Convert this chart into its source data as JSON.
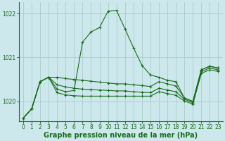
{
  "title": "Graphe pression niveau de la mer (hPa)",
  "background_color": "#cce8ec",
  "grid_color": "#aacccc",
  "line_color": "#1a6b1a",
  "ylim": [
    1019.55,
    1022.25
  ],
  "yticks": [
    1020,
    1021,
    1022
  ],
  "xlim": [
    -0.5,
    23.5
  ],
  "xticks": [
    0,
    1,
    2,
    3,
    4,
    5,
    6,
    7,
    8,
    9,
    10,
    11,
    12,
    13,
    14,
    15,
    16,
    17,
    18,
    19,
    20,
    21,
    22,
    23
  ],
  "fontsize_title": 7,
  "fontsize_ticks": 5.5,
  "main_y": [
    1019.62,
    1019.83,
    1020.45,
    1020.55,
    1020.28,
    1020.22,
    1020.25,
    1021.35,
    1021.58,
    1021.68,
    1022.05,
    1022.07,
    1021.65,
    1021.22,
    1020.82,
    1020.6,
    1020.55,
    1020.48,
    1020.45,
    1020.08,
    1020.0,
    1020.72,
    1020.8,
    1020.76
  ],
  "flat1_y": [
    1019.62,
    1019.83,
    1020.45,
    1020.55,
    1020.55,
    1020.52,
    1020.5,
    1020.48,
    1020.46,
    1020.44,
    1020.42,
    1020.4,
    1020.4,
    1020.38,
    1020.36,
    1020.34,
    1020.45,
    1020.4,
    1020.35,
    1020.08,
    1020.0,
    1020.72,
    1020.8,
    1020.76
  ],
  "flat2_y": [
    1019.62,
    1019.83,
    1020.45,
    1020.55,
    1020.38,
    1020.33,
    1020.3,
    1020.28,
    1020.27,
    1020.26,
    1020.25,
    1020.24,
    1020.24,
    1020.22,
    1020.21,
    1020.2,
    1020.3,
    1020.26,
    1020.22,
    1020.05,
    1019.97,
    1020.68,
    1020.76,
    1020.72
  ],
  "flat3_y": [
    1019.62,
    1019.83,
    1020.45,
    1020.55,
    1020.2,
    1020.15,
    1020.13,
    1020.12,
    1020.12,
    1020.12,
    1020.12,
    1020.12,
    1020.12,
    1020.12,
    1020.12,
    1020.12,
    1020.22,
    1020.18,
    1020.14,
    1020.01,
    1019.94,
    1020.64,
    1020.72,
    1020.68
  ]
}
